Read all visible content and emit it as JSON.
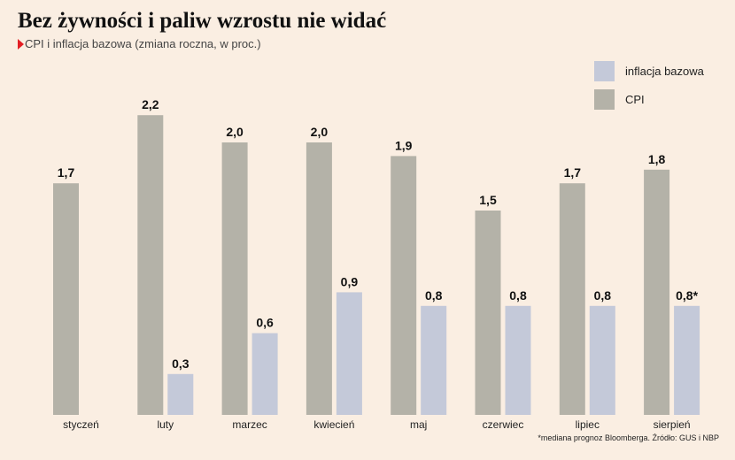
{
  "header": {
    "title": "Bez żywności i paliw wzrostu nie widać",
    "subtitle": "CPI i inflacja bazowa (zmiana roczna, w proc.)"
  },
  "legend": {
    "items": [
      {
        "label": "inflacja bazowa",
        "color": "#c4c9d9"
      },
      {
        "label": "CPI",
        "color": "#b4b2a8"
      }
    ]
  },
  "footnote": "*mediana prognoz Bloomberga. Źródło: GUS i NBP",
  "chart_data": {
    "type": "bar",
    "categories": [
      "styczeń",
      "luty",
      "marzec",
      "kwiecień",
      "maj",
      "czerwiec",
      "lipiec",
      "sierpień"
    ],
    "series": [
      {
        "name": "CPI",
        "color": "#b4b2a8",
        "values": [
          1.7,
          2.2,
          2.0,
          2.0,
          1.9,
          1.5,
          1.7,
          1.8
        ],
        "labels": [
          "1,7",
          "2,2",
          "2,0",
          "2,0",
          "1,9",
          "1,5",
          "1,7",
          "1,8"
        ]
      },
      {
        "name": "inflacja bazowa",
        "color": "#c4c9d9",
        "values": [
          null,
          0.3,
          0.6,
          0.9,
          0.8,
          0.8,
          0.8,
          0.8
        ],
        "labels": [
          "",
          "0,3",
          "0,6",
          "0,9",
          "0,8",
          "0,8",
          "0,8",
          "0,8*"
        ]
      }
    ],
    "ylim": [
      0,
      2.2
    ],
    "grid": false,
    "legend_position": "top-right"
  }
}
